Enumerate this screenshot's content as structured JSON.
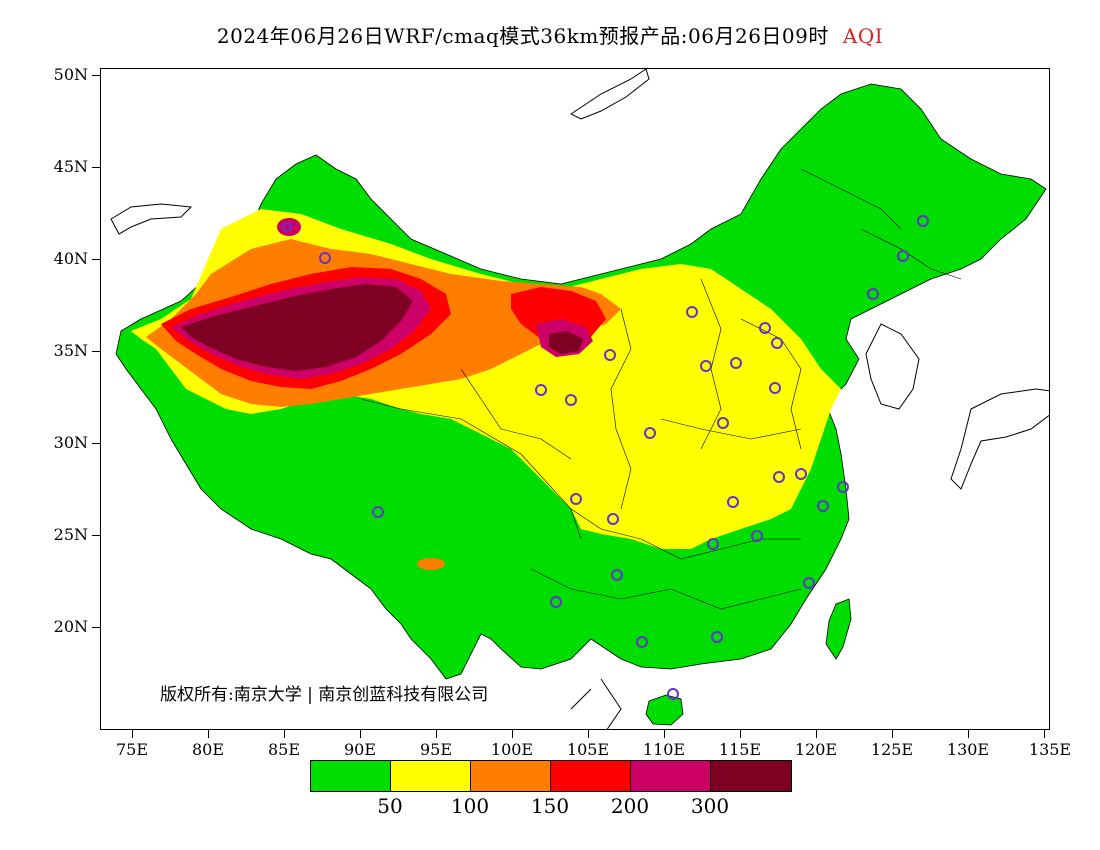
{
  "title": {
    "main": "2024年06月26日WRF/cmaq模式36km预报产品:06月26日09时",
    "variable": "AQI",
    "variable_color": "#e02020"
  },
  "axes": {
    "y_labels": [
      "50N",
      "45N",
      "40N",
      "35N",
      "30N",
      "25N",
      "20N"
    ],
    "x_labels": [
      "75E",
      "80E",
      "85E",
      "90E",
      "95E",
      "100E",
      "105E",
      "110E",
      "115E",
      "120E",
      "125E",
      "130E",
      "135E"
    ]
  },
  "colorbar": {
    "colors": [
      "#00dd00",
      "#ffff00",
      "#ff7e00",
      "#ff0000",
      "#cc0066",
      "#7e0023"
    ],
    "labels": [
      "50",
      "100",
      "150",
      "200",
      "300"
    ]
  },
  "copyright": "版权所有:南京大学 | 南京创蓝科技有限公司"
}
